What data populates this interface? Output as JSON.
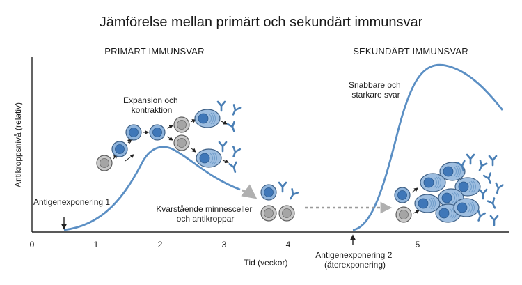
{
  "title": "Jämförelse mellan primärt och sekundärt immunsvar",
  "sections": {
    "primary": "PRIMÄRT IMMUNSVAR",
    "secondary": "SEKUNDÄRT IMMUNSVAR"
  },
  "axes": {
    "ylabel": "Antikroppsnivå (relativ)",
    "xlabel": "Tid (veckor)",
    "xticks": [
      "0",
      "1",
      "2",
      "3",
      "4",
      "5"
    ]
  },
  "annotations": {
    "expansion": [
      "Expansion och",
      "kontraktion"
    ],
    "faster": [
      "Snabbare och",
      "starkare svar"
    ],
    "memory": [
      "Kvarstående minnesceller",
      "och antikroppar"
    ],
    "exposure1": "Antigenexponering 1",
    "exposure2": [
      "Antigenexponering 2",
      "(återexponering)"
    ]
  },
  "colors": {
    "curve": "#5b8fc4",
    "cell_blue": "#8fb4dc",
    "cell_nucleus": "#3f77b8",
    "cell_gray": "#b9b9b9",
    "cell_gray_nucleus": "#9a9a9a",
    "antibody": "#4a7fb5"
  }
}
